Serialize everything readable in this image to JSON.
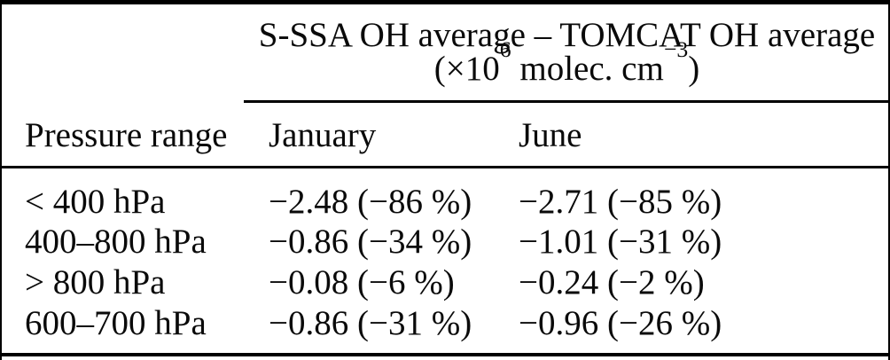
{
  "page": {
    "background_color": "#ffffff",
    "text_color": "#0a0a0a",
    "rule_color": "#000000"
  },
  "table": {
    "spanner": {
      "title": "S-SSA OH average – TOMCAT OH average",
      "unit": {
        "open": "(×10",
        "exponent1": "6",
        "middle": " molec. cm",
        "exponent2": "−3",
        "close": ")"
      }
    },
    "columns": [
      {
        "label": "Pressure range"
      },
      {
        "label": "January"
      },
      {
        "label": "June"
      }
    ],
    "rows": [
      {
        "pressure_range": "< 400 hPa",
        "january": "−2.48 (−86 %)",
        "june": "−2.71 (−85 %)"
      },
      {
        "pressure_range": "400–800 hPa",
        "january": "−0.86 (−34 %)",
        "june": "−1.01 (−31 %)"
      },
      {
        "pressure_range": "> 800 hPa",
        "january": "−0.08 (−6 %)",
        "june": "−0.24 (−2 %)"
      },
      {
        "pressure_range": "600–700 hPa",
        "january": "−0.86 (−31 %)",
        "june": "−0.96 (−26 %)"
      }
    ]
  }
}
